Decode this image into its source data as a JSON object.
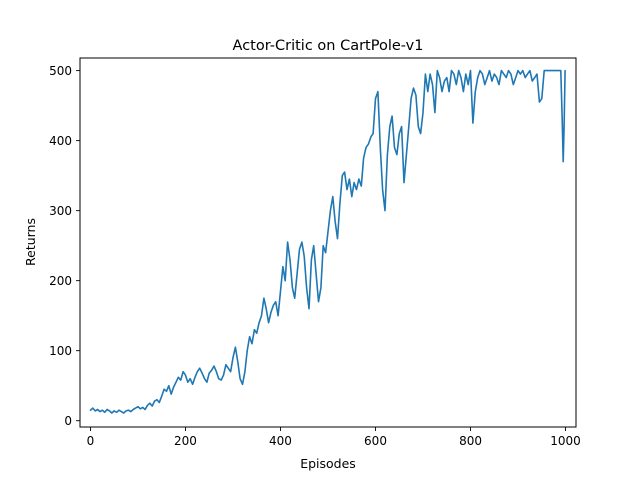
{
  "chart_data": {
    "type": "line",
    "title": "Actor-Critic on CartPole-v1",
    "xlabel": "Episodes",
    "ylabel": "Returns",
    "xlim": [
      -22,
      1022
    ],
    "ylim": [
      -9,
      518
    ],
    "xticks": [
      0,
      200,
      400,
      600,
      800,
      1000
    ],
    "yticks": [
      0,
      100,
      200,
      300,
      400,
      500
    ],
    "grid": false,
    "color": "#1f77b4",
    "series": [
      {
        "name": "",
        "x": [
          0,
          5,
          10,
          15,
          20,
          25,
          30,
          35,
          40,
          45,
          50,
          55,
          60,
          65,
          70,
          75,
          80,
          85,
          90,
          95,
          100,
          105,
          110,
          115,
          120,
          125,
          130,
          135,
          140,
          145,
          150,
          155,
          160,
          165,
          170,
          175,
          180,
          185,
          190,
          195,
          200,
          205,
          210,
          215,
          220,
          225,
          230,
          235,
          240,
          245,
          250,
          255,
          260,
          265,
          270,
          275,
          280,
          285,
          290,
          295,
          300,
          305,
          310,
          315,
          320,
          325,
          330,
          335,
          340,
          345,
          350,
          355,
          360,
          365,
          370,
          375,
          380,
          385,
          390,
          395,
          400,
          405,
          410,
          415,
          420,
          425,
          430,
          435,
          440,
          445,
          450,
          455,
          460,
          465,
          470,
          475,
          480,
          485,
          490,
          495,
          500,
          505,
          510,
          515,
          520,
          525,
          530,
          535,
          540,
          545,
          550,
          555,
          560,
          565,
          570,
          575,
          580,
          585,
          590,
          595,
          600,
          605,
          610,
          615,
          620,
          625,
          630,
          635,
          640,
          645,
          650,
          655,
          660,
          665,
          670,
          675,
          680,
          685,
          690,
          695,
          700,
          705,
          710,
          715,
          720,
          725,
          730,
          735,
          740,
          745,
          750,
          755,
          760,
          765,
          770,
          775,
          780,
          785,
          790,
          795,
          800,
          805,
          810,
          815,
          820,
          825,
          830,
          835,
          840,
          845,
          850,
          855,
          860,
          865,
          870,
          875,
          880,
          885,
          890,
          895,
          900,
          905,
          910,
          915,
          920,
          925,
          930,
          935,
          940,
          945,
          950,
          955,
          960,
          965,
          970,
          975,
          980,
          985,
          990,
          993,
          995,
          997,
          999
        ],
        "y": [
          15,
          18,
          14,
          16,
          13,
          15,
          12,
          16,
          14,
          11,
          14,
          12,
          15,
          13,
          11,
          14,
          15,
          13,
          16,
          18,
          20,
          17,
          19,
          16,
          22,
          25,
          21,
          28,
          30,
          26,
          35,
          45,
          42,
          50,
          38,
          48,
          55,
          62,
          58,
          70,
          65,
          55,
          60,
          52,
          62,
          70,
          75,
          68,
          60,
          55,
          68,
          72,
          78,
          70,
          60,
          58,
          65,
          80,
          75,
          70,
          90,
          105,
          85,
          60,
          52,
          70,
          100,
          120,
          110,
          130,
          125,
          140,
          150,
          175,
          160,
          140,
          155,
          165,
          170,
          150,
          185,
          220,
          200,
          255,
          230,
          190,
          175,
          210,
          245,
          255,
          235,
          190,
          160,
          230,
          250,
          210,
          170,
          190,
          250,
          240,
          270,
          300,
          320,
          285,
          260,
          310,
          350,
          355,
          330,
          345,
          320,
          340,
          330,
          345,
          335,
          375,
          390,
          395,
          405,
          410,
          460,
          470,
          390,
          330,
          300,
          380,
          420,
          435,
          390,
          380,
          410,
          420,
          340,
          380,
          420,
          460,
          475,
          465,
          420,
          410,
          440,
          495,
          470,
          495,
          480,
          440,
          500,
          490,
          470,
          485,
          490,
          470,
          500,
          495,
          480,
          500,
          490,
          470,
          495,
          480,
          500,
          425,
          470,
          490,
          500,
          495,
          480,
          490,
          500,
          485,
          495,
          490,
          480,
          500,
          495,
          490,
          500,
          495,
          480,
          490,
          500,
          495,
          500,
          490,
          495,
          500,
          485,
          490,
          495,
          455,
          460,
          500,
          500,
          500,
          500,
          500,
          500,
          500,
          500,
          430,
          370,
          420,
          500
        ]
      }
    ]
  }
}
